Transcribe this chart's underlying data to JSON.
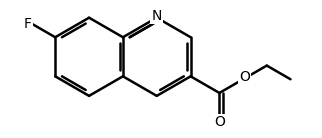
{
  "bg_color": "#ffffff",
  "bond_color": "#000000",
  "bond_width": 1.8,
  "font_size": 10,
  "figsize": [
    3.22,
    1.38
  ],
  "dpi": 100,
  "xlim": [
    -0.5,
    4.8
  ],
  "ylim": [
    -0.3,
    2.7
  ]
}
